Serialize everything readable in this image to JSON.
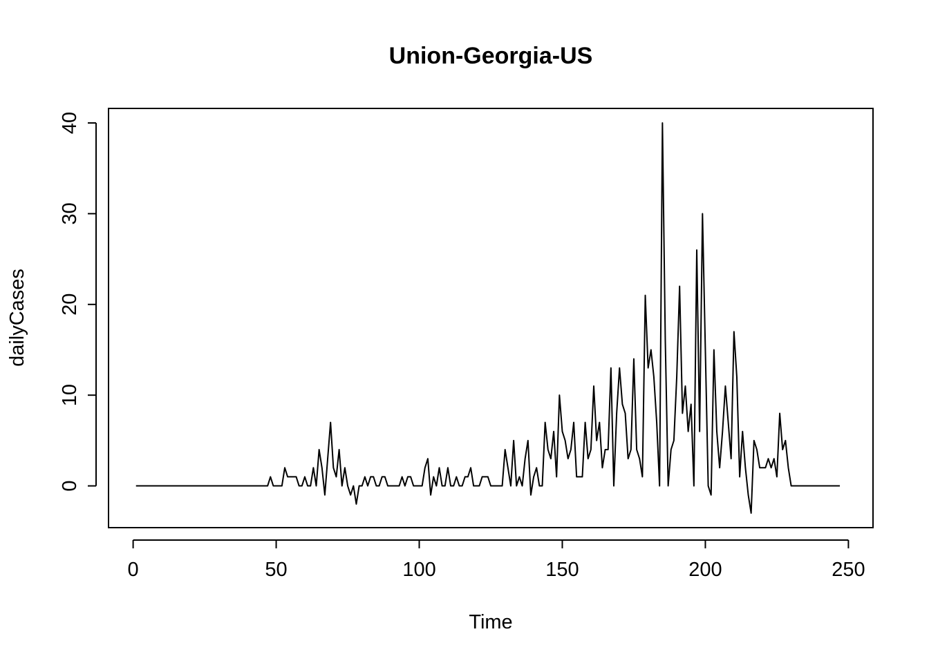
{
  "chart_data": {
    "type": "line",
    "title": "Union-Georgia-US",
    "xlabel": "Time",
    "ylabel": "dailyCases",
    "xlim": [
      -8.6,
      258.6
    ],
    "ylim": [
      -4.6,
      41.6
    ],
    "x_ticks": [
      0,
      50,
      100,
      150,
      200,
      250
    ],
    "y_ticks": [
      0,
      10,
      20,
      30,
      40
    ],
    "grid": false,
    "series": [
      {
        "x_start": 1,
        "values": [
          0,
          0,
          0,
          0,
          0,
          0,
          0,
          0,
          0,
          0,
          0,
          0,
          0,
          0,
          0,
          0,
          0,
          0,
          0,
          0,
          0,
          0,
          0,
          0,
          0,
          0,
          0,
          0,
          0,
          0,
          0,
          0,
          0,
          0,
          0,
          0,
          0,
          0,
          0,
          0,
          0,
          0,
          0,
          0,
          0,
          0,
          0,
          1,
          0,
          0,
          0,
          0,
          2,
          1,
          1,
          1,
          1,
          0,
          0,
          1,
          0,
          0,
          2,
          0,
          4,
          2,
          -1,
          3,
          7,
          2,
          1,
          4,
          0,
          2,
          0,
          -1,
          0,
          -2,
          0,
          0,
          1,
          0,
          1,
          1,
          0,
          0,
          1,
          1,
          0,
          0,
          0,
          0,
          0,
          1,
          0,
          1,
          1,
          0,
          0,
          0,
          0,
          2,
          3,
          -1,
          1,
          0,
          2,
          0,
          0,
          2,
          0,
          0,
          1,
          0,
          0,
          1,
          1,
          2,
          0,
          0,
          0,
          1,
          1,
          1,
          0,
          0,
          0,
          0,
          0,
          4,
          2,
          0,
          5,
          0,
          1,
          0,
          3,
          5,
          -1,
          1,
          2,
          0,
          0,
          7,
          4,
          3,
          6,
          1,
          10,
          6,
          5,
          3,
          4,
          7,
          1,
          1,
          1,
          7,
          3,
          4,
          11,
          5,
          7,
          2,
          4,
          4,
          13,
          0,
          8,
          13,
          9,
          8,
          3,
          4,
          14,
          4,
          3,
          1,
          21,
          13,
          15,
          12,
          7,
          0,
          40,
          16,
          0,
          4,
          5,
          12,
          22,
          8,
          11,
          6,
          9,
          0,
          26,
          6,
          30,
          15,
          0,
          -1,
          15,
          6,
          2,
          6,
          11,
          7,
          3,
          17,
          12,
          1,
          6,
          2,
          -1,
          -3,
          5,
          4,
          2,
          2,
          2,
          3,
          2,
          3,
          1,
          8,
          4,
          5,
          2,
          0,
          0,
          0,
          0,
          0,
          0,
          0,
          0,
          0,
          0,
          0,
          0,
          0,
          0,
          0,
          0,
          0,
          0
        ]
      }
    ]
  }
}
